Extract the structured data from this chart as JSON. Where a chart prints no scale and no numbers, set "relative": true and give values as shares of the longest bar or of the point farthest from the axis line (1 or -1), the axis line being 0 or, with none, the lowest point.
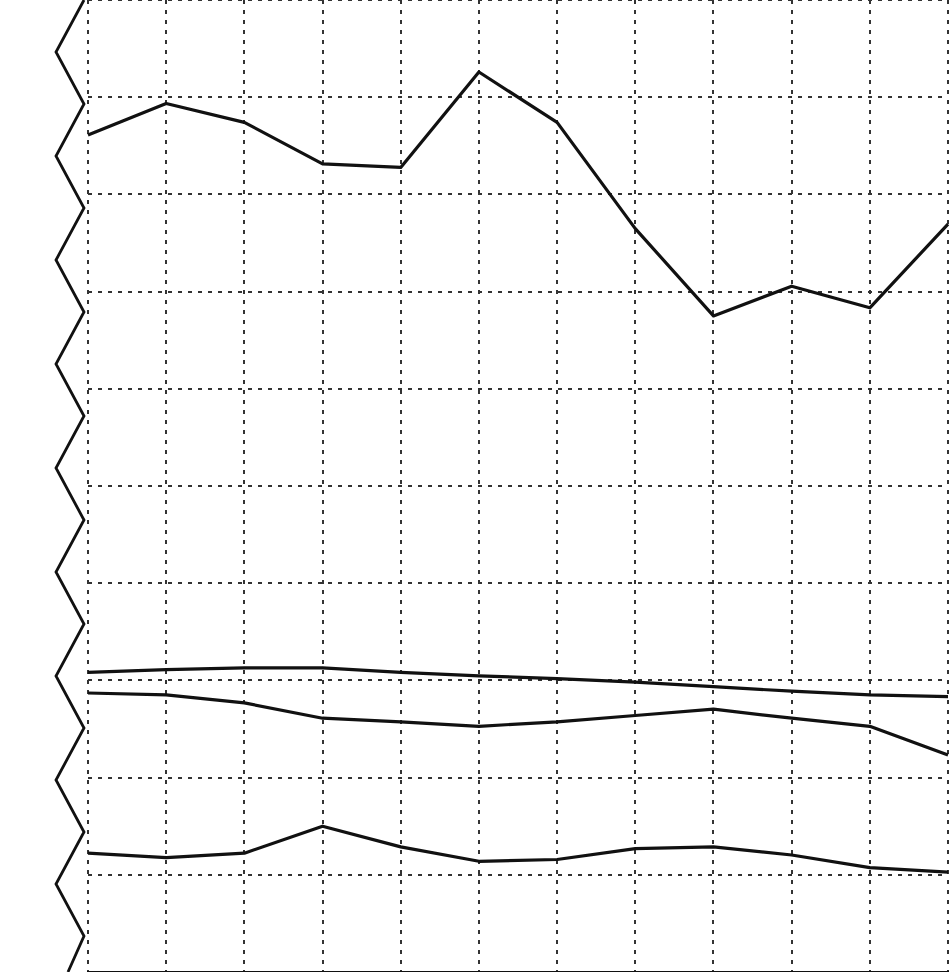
{
  "chart_data": {
    "type": "line",
    "relative": true,
    "grid": true,
    "legend": false,
    "marker": "none",
    "line_style": "solid",
    "tick_labels": false,
    "categories": [
      null,
      null,
      null,
      null,
      null,
      null,
      null,
      null,
      null,
      null,
      null,
      null
    ],
    "series": [
      {
        "color": "#111111",
        "values": [
          0.93,
          0.965,
          0.944,
          0.898,
          0.894,
          1.0,
          0.944,
          0.826,
          0.729,
          0.762,
          0.738,
          0.831
        ]
      },
      {
        "color": "#111111",
        "values": [
          0.333,
          0.336,
          0.338,
          0.338,
          0.333,
          0.329,
          0.326,
          0.322,
          0.317,
          0.312,
          0.308,
          0.306
        ]
      },
      {
        "color": "#111111",
        "values": [
          0.31,
          0.308,
          0.299,
          0.282,
          0.278,
          0.273,
          0.278,
          0.285,
          0.292,
          0.282,
          0.273,
          0.241
        ]
      },
      {
        "color": "#111111",
        "values": [
          0.132,
          0.127,
          0.132,
          0.162,
          0.139,
          0.123,
          0.125,
          0.137,
          0.139,
          0.13,
          0.116,
          0.111
        ]
      }
    ]
  }
}
